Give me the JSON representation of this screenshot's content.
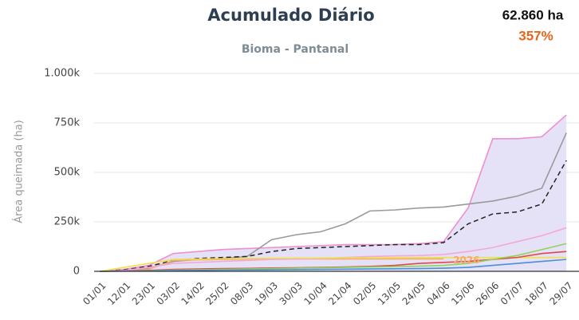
{
  "chart_data": {
    "type": "line",
    "title": "Acumulado Diário",
    "subtitle": "Bioma - Pantanal",
    "stat_value": "62.860 ha",
    "stat_percent": "357%",
    "y_label": "Área queimada (ha)",
    "annotation": "2026",
    "categories": [
      "01/01",
      "12/01",
      "23/01",
      "03/02",
      "14/02",
      "25/02",
      "08/03",
      "19/03",
      "30/03",
      "10/04",
      "21/04",
      "02/05",
      "13/05",
      "24/05",
      "04/06",
      "15/06",
      "26/06",
      "07/07",
      "18/07",
      "29/07"
    ],
    "ylim": [
      0,
      1000000
    ],
    "yticks": [
      0,
      {
        "value": 250000,
        "label": "250k"
      },
      {
        "value": 500000,
        "label": "500k"
      },
      {
        "value": 750000,
        "label": "750k"
      },
      {
        "value": 1000000,
        "label": "1.000k"
      }
    ],
    "grid": true,
    "band_color": "#e0ddf7",
    "series": [
      {
        "color": "#ee8fcf",
        "values": [
          0,
          10000,
          30000,
          90000,
          100000,
          110000,
          115000,
          120000,
          125000,
          130000,
          135000,
          135000,
          135000,
          140000,
          150000,
          320000,
          670000,
          670000,
          680000,
          790000
        ]
      },
      {
        "color": "#9a9a9a",
        "values": [
          0,
          5000,
          15000,
          50000,
          60000,
          65000,
          75000,
          160000,
          185000,
          200000,
          240000,
          305000,
          310000,
          320000,
          325000,
          340000,
          355000,
          380000,
          420000,
          700000
        ]
      },
      {
        "color": "#222222",
        "dashed": true,
        "values": [
          0,
          8000,
          25000,
          55000,
          65000,
          70000,
          75000,
          100000,
          115000,
          120000,
          125000,
          130000,
          135000,
          135000,
          145000,
          240000,
          290000,
          300000,
          340000,
          560000
        ]
      },
      {
        "color": "#f5a96b",
        "values": [
          0,
          2000,
          10000,
          55000,
          58000,
          60000,
          62000,
          62500,
          62800,
          62860,
          62860,
          62860,
          62860,
          62860,
          62860,
          null,
          null,
          null,
          null,
          null
        ]
      },
      {
        "color": "#f4a8d8",
        "values": [
          0,
          5000,
          20000,
          40000,
          45000,
          50000,
          55000,
          60000,
          62000,
          65000,
          70000,
          75000,
          78000,
          80000,
          85000,
          100000,
          120000,
          150000,
          180000,
          220000
        ]
      },
      {
        "color": "#f2e04a",
        "values": [
          0,
          20000,
          40000,
          60000,
          62000,
          64000,
          65000,
          66000,
          67000,
          67000,
          68000,
          68000,
          69000,
          70000,
          70000,
          70000,
          70000,
          70000,
          70000,
          70000
        ]
      },
      {
        "color": "#e04848",
        "values": [
          0,
          2000,
          5000,
          10000,
          12000,
          14000,
          15000,
          17000,
          18000,
          20000,
          22000,
          25000,
          30000,
          40000,
          45000,
          50000,
          60000,
          70000,
          90000,
          100000
        ]
      },
      {
        "color": "#8fd35a",
        "values": [
          0,
          1000,
          3000,
          6000,
          8000,
          10000,
          12000,
          14000,
          16000,
          18000,
          20000,
          22000,
          24000,
          26000,
          30000,
          40000,
          60000,
          80000,
          110000,
          140000
        ]
      },
      {
        "color": "#4a8fd8",
        "values": [
          0,
          1000,
          2000,
          4000,
          5000,
          6000,
          7000,
          8000,
          9000,
          10000,
          11000,
          12000,
          13000,
          14000,
          16000,
          20000,
          30000,
          40000,
          50000,
          60000
        ]
      }
    ]
  }
}
